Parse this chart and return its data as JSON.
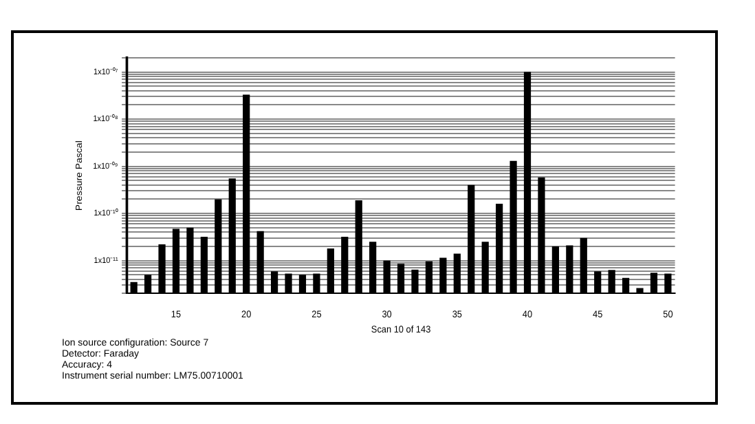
{
  "chart_data": {
    "type": "bar",
    "ylabel": "Pressure Pascal",
    "xlabel": "Scan 10 of 143",
    "categories": [
      null,
      null,
      null,
      "15",
      null,
      null,
      null,
      null,
      "20",
      null,
      null,
      null,
      null,
      "25",
      null,
      null,
      null,
      null,
      "30",
      null,
      null,
      null,
      null,
      "35",
      null,
      null,
      null,
      null,
      "40",
      null,
      null,
      null,
      null,
      "45",
      null,
      null,
      null,
      null,
      "50"
    ],
    "values": [
      3.5e-12,
      5e-12,
      2.2e-11,
      4.7e-11,
      5e-11,
      3.2e-11,
      2e-10,
      5.5e-10,
      3.3e-08,
      4.2e-11,
      5.9e-12,
      5.3e-12,
      5e-12,
      5.3e-12,
      1.8e-11,
      3.2e-11,
      1.9e-10,
      2.5e-11,
      1e-11,
      8.5e-12,
      6.4e-12,
      9.6e-12,
      1.15e-11,
      1.4e-11,
      4e-10,
      2.5e-11,
      1.6e-10,
      1.3e-09,
      1e-07,
      5.8e-10,
      2e-11,
      2.1e-11,
      3e-11,
      5.9e-12,
      6.3e-12,
      4.3e-12,
      2.6e-12,
      5.5e-12,
      5.3e-12
    ],
    "color": "#000000",
    "log": "y",
    "grid": "y",
    "legend": false,
    "ylim": [
      2e-12,
      2e-07
    ],
    "yticks": [
      {
        "value": 2e-12,
        "label": null
      },
      {
        "value": 3e-12,
        "label": null
      },
      {
        "value": 4e-12,
        "label": null
      },
      {
        "value": 5e-12,
        "label": null
      },
      {
        "value": 6e-12,
        "label": null
      },
      {
        "value": 7e-12,
        "label": null
      },
      {
        "value": 8e-12,
        "label": null
      },
      {
        "value": 9e-12,
        "label": null
      },
      {
        "value": 1e-11,
        "label": "1x10⁻¹¹"
      },
      {
        "value": 2e-11,
        "label": null
      },
      {
        "value": 3e-11,
        "label": null
      },
      {
        "value": 4e-11,
        "label": null
      },
      {
        "value": 5e-11,
        "label": null
      },
      {
        "value": 6e-11,
        "label": null
      },
      {
        "value": 7e-11,
        "label": null
      },
      {
        "value": 8e-11,
        "label": null
      },
      {
        "value": 9e-11,
        "label": null
      },
      {
        "value": 1e-10,
        "label": "1x10⁻¹⁰"
      },
      {
        "value": 2e-10,
        "label": null
      },
      {
        "value": 3e-10,
        "label": null
      },
      {
        "value": 4e-10,
        "label": null
      },
      {
        "value": 5e-10,
        "label": null
      },
      {
        "value": 6e-10,
        "label": null
      },
      {
        "value": 7e-10,
        "label": null
      },
      {
        "value": 8e-10,
        "label": null
      },
      {
        "value": 9e-10,
        "label": null
      },
      {
        "value": 1e-09,
        "label": "1x10⁻⁰⁹"
      },
      {
        "value": 2e-09,
        "label": null
      },
      {
        "value": 3e-09,
        "label": null
      },
      {
        "value": 4e-09,
        "label": null
      },
      {
        "value": 5e-09,
        "label": null
      },
      {
        "value": 6e-09,
        "label": null
      },
      {
        "value": 7e-09,
        "label": null
      },
      {
        "value": 8e-09,
        "label": null
      },
      {
        "value": 9e-09,
        "label": null
      },
      {
        "value": 1e-08,
        "label": "1x10⁻⁰⁸"
      },
      {
        "value": 2e-08,
        "label": null
      },
      {
        "value": 3e-08,
        "label": null
      },
      {
        "value": 4e-08,
        "label": null
      },
      {
        "value": 5e-08,
        "label": null
      },
      {
        "value": 6e-08,
        "label": null
      },
      {
        "value": 7e-08,
        "label": null
      },
      {
        "value": 8e-08,
        "label": null
      },
      {
        "value": 9e-08,
        "label": null
      },
      {
        "value": 1e-07,
        "label": "1x10⁻⁰⁷"
      },
      {
        "value": 2e-07,
        "label": null
      }
    ],
    "annotations": [
      "Ion source configuration: Source 7",
      "Detector: Faraday",
      "Accuracy: 4",
      "Instrument serial number: LM75.00710001"
    ]
  }
}
